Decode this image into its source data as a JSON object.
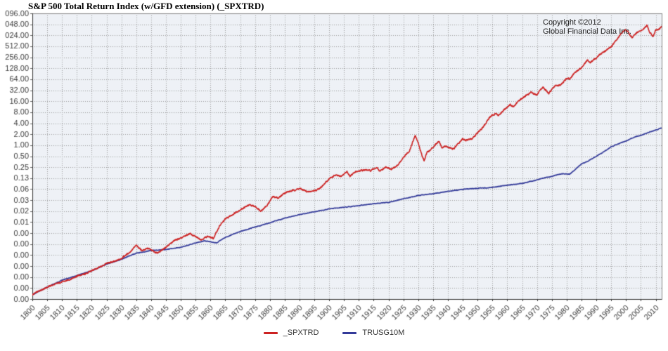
{
  "window": {
    "title": "S&P 500 Total Return Index (w/GFD extension) (_SPXTRD)"
  },
  "chart_data": {
    "type": "line",
    "title": "S&P 500 Total Return Index (w/GFD extension) (_SPXTRD)",
    "x_axis": {
      "min": 1800,
      "max": 2012,
      "tick_interval": 5,
      "grid": true,
      "tick_labels": [
        "1800",
        "1805",
        "1810",
        "1815",
        "1820",
        "1825",
        "1830",
        "1835",
        "1840",
        "1845",
        "1850",
        "1855",
        "1860",
        "1865",
        "1870",
        "1875",
        "1880",
        "1885",
        "1890",
        "1895",
        "1900",
        "1905",
        "1910",
        "1915",
        "1920",
        "1925",
        "1930",
        "1935",
        "1940",
        "1945",
        "1950",
        "1955",
        "1960",
        "1965",
        "1970",
        "1975",
        "1980",
        "1985",
        "1990",
        "1995",
        "2000",
        "2005",
        "2010"
      ]
    },
    "y_axis": {
      "scale": "log2",
      "top_value": 4096,
      "levels": 27,
      "grid": true,
      "tick_labels": [
        "096.00",
        "048.00",
        "024.00",
        "512.00",
        "256.00",
        "128.00",
        "64.00",
        "32.00",
        "16.00",
        "8.00",
        "4.00",
        "2.00",
        "1.00",
        "0.50",
        "0.25",
        "0.13",
        "0.06",
        "0.03",
        "0.02",
        "0.01",
        "0.00",
        "0.00",
        "0.00",
        "0.00",
        "0.00",
        "0.00",
        "0.00"
      ]
    },
    "grid_color": "#9a9a9a",
    "plot_background": "#eef1f6",
    "annotations": {
      "copyright": [
        "Copyright ©2012",
        "Global Financial Data Inc."
      ]
    },
    "legend_position": "bottom-center",
    "series": [
      {
        "name": "_SPXTRD",
        "color": "#cc2222",
        "width": 1.6,
        "points": [
          [
            1800,
            8e-05
          ],
          [
            1803,
            0.00011
          ],
          [
            1806,
            0.00014
          ],
          [
            1809,
            0.00017
          ],
          [
            1812,
            0.0002
          ],
          [
            1815,
            0.00026
          ],
          [
            1818,
            0.0003
          ],
          [
            1820,
            0.00037
          ],
          [
            1823,
            0.00046
          ],
          [
            1825,
            0.00058
          ],
          [
            1828,
            0.00066
          ],
          [
            1830,
            0.0008
          ],
          [
            1833,
            0.0012
          ],
          [
            1835,
            0.0018
          ],
          [
            1837,
            0.0013
          ],
          [
            1839,
            0.0015
          ],
          [
            1842,
            0.0011
          ],
          [
            1845,
            0.0016
          ],
          [
            1848,
            0.0025
          ],
          [
            1850,
            0.0028
          ],
          [
            1853,
            0.0038
          ],
          [
            1855,
            0.0031
          ],
          [
            1857,
            0.0026
          ],
          [
            1859,
            0.0032
          ],
          [
            1861,
            0.0028
          ],
          [
            1863,
            0.006
          ],
          [
            1865,
            0.0095
          ],
          [
            1867,
            0.012
          ],
          [
            1870,
            0.017
          ],
          [
            1873,
            0.023
          ],
          [
            1875,
            0.021
          ],
          [
            1877,
            0.016
          ],
          [
            1879,
            0.022
          ],
          [
            1881,
            0.039
          ],
          [
            1883,
            0.036
          ],
          [
            1885,
            0.05
          ],
          [
            1887,
            0.055
          ],
          [
            1890,
            0.065
          ],
          [
            1893,
            0.052
          ],
          [
            1896,
            0.06
          ],
          [
            1898,
            0.08
          ],
          [
            1900,
            0.12
          ],
          [
            1902,
            0.15
          ],
          [
            1904,
            0.14
          ],
          [
            1906,
            0.19
          ],
          [
            1907,
            0.14
          ],
          [
            1909,
            0.19
          ],
          [
            1912,
            0.21
          ],
          [
            1914,
            0.2
          ],
          [
            1916,
            0.25
          ],
          [
            1917,
            0.19
          ],
          [
            1919,
            0.25
          ],
          [
            1921,
            0.22
          ],
          [
            1923,
            0.28
          ],
          [
            1925,
            0.45
          ],
          [
            1927,
            0.7
          ],
          [
            1929,
            1.85
          ],
          [
            1930,
            1.15
          ],
          [
            1931,
            0.6
          ],
          [
            1932,
            0.38
          ],
          [
            1933,
            0.66
          ],
          [
            1934,
            0.72
          ],
          [
            1936,
            1.1
          ],
          [
            1937,
            1.3
          ],
          [
            1938,
            0.85
          ],
          [
            1939,
            0.95
          ],
          [
            1940,
            0.88
          ],
          [
            1942,
            0.78
          ],
          [
            1943,
            1.0
          ],
          [
            1945,
            1.5
          ],
          [
            1946,
            1.35
          ],
          [
            1948,
            1.5
          ],
          [
            1950,
            2.2
          ],
          [
            1952,
            3.2
          ],
          [
            1954,
            5.8
          ],
          [
            1956,
            7.5
          ],
          [
            1957,
            6.5
          ],
          [
            1959,
            9.5
          ],
          [
            1961,
            13
          ],
          [
            1962,
            11
          ],
          [
            1964,
            17
          ],
          [
            1966,
            22
          ],
          [
            1968,
            28
          ],
          [
            1970,
            24
          ],
          [
            1972,
            39
          ],
          [
            1974,
            26
          ],
          [
            1976,
            42
          ],
          [
            1978,
            45
          ],
          [
            1980,
            68
          ],
          [
            1981,
            65
          ],
          [
            1983,
            100
          ],
          [
            1985,
            135
          ],
          [
            1987,
            215
          ],
          [
            1988,
            185
          ],
          [
            1990,
            245
          ],
          [
            1991,
            300
          ],
          [
            1993,
            380
          ],
          [
            1995,
            500
          ],
          [
            1997,
            800
          ],
          [
            1999,
            1350
          ],
          [
            2000,
            1450
          ],
          [
            2001,
            1150
          ],
          [
            2002,
            880
          ],
          [
            2003,
            1100
          ],
          [
            2004,
            1250
          ],
          [
            2005,
            1350
          ],
          [
            2006,
            1550
          ],
          [
            2007,
            1950
          ],
          [
            2008,
            1250
          ],
          [
            2009,
            950
          ],
          [
            2010,
            1400
          ],
          [
            2011,
            1500
          ],
          [
            2012,
            1750
          ]
        ]
      },
      {
        "name": "TRUSG10M",
        "color": "#333a99",
        "width": 1.6,
        "points": [
          [
            1800,
            8e-05
          ],
          [
            1805,
            0.00013
          ],
          [
            1810,
            0.0002
          ],
          [
            1815,
            0.00027
          ],
          [
            1820,
            0.00036
          ],
          [
            1825,
            0.00055
          ],
          [
            1830,
            0.00075
          ],
          [
            1835,
            0.0011
          ],
          [
            1840,
            0.0013
          ],
          [
            1845,
            0.0014
          ],
          [
            1850,
            0.0016
          ],
          [
            1855,
            0.0021
          ],
          [
            1858,
            0.0024
          ],
          [
            1862,
            0.0021
          ],
          [
            1865,
            0.003
          ],
          [
            1870,
            0.0043
          ],
          [
            1875,
            0.0057
          ],
          [
            1880,
            0.0075
          ],
          [
            1885,
            0.01
          ],
          [
            1890,
            0.0125
          ],
          [
            1895,
            0.015
          ],
          [
            1900,
            0.018
          ],
          [
            1905,
            0.02
          ],
          [
            1910,
            0.022
          ],
          [
            1915,
            0.025
          ],
          [
            1920,
            0.027
          ],
          [
            1925,
            0.034
          ],
          [
            1930,
            0.042
          ],
          [
            1935,
            0.047
          ],
          [
            1940,
            0.054
          ],
          [
            1945,
            0.062
          ],
          [
            1950,
            0.066
          ],
          [
            1955,
            0.07
          ],
          [
            1960,
            0.08
          ],
          [
            1965,
            0.09
          ],
          [
            1970,
            0.112
          ],
          [
            1972,
            0.125
          ],
          [
            1975,
            0.14
          ],
          [
            1977,
            0.158
          ],
          [
            1979,
            0.165
          ],
          [
            1981,
            0.16
          ],
          [
            1983,
            0.22
          ],
          [
            1985,
            0.31
          ],
          [
            1987,
            0.36
          ],
          [
            1990,
            0.5
          ],
          [
            1992,
            0.62
          ],
          [
            1995,
            0.9
          ],
          [
            1998,
            1.15
          ],
          [
            2000,
            1.3
          ],
          [
            2003,
            1.7
          ],
          [
            2005,
            1.85
          ],
          [
            2008,
            2.3
          ],
          [
            2010,
            2.6
          ],
          [
            2012,
            3.0
          ]
        ]
      }
    ]
  }
}
